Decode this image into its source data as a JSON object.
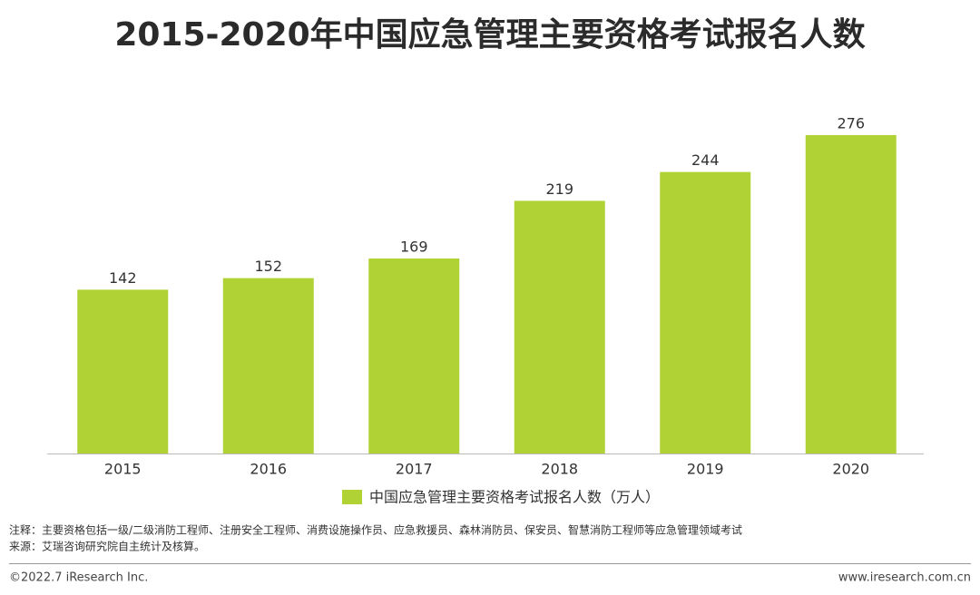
{
  "chart_data": {
    "type": "bar",
    "title": "2015-2020年中国应急管理主要资格考试报名人数",
    "categories": [
      "2015",
      "2016",
      "2017",
      "2018",
      "2019",
      "2020"
    ],
    "series": [
      {
        "name": "中国应急管理主要资格考试报名人数（万人）",
        "color": "#b0d235",
        "values": [
          142,
          152,
          169,
          219,
          244,
          276
        ]
      }
    ],
    "notes": [
      "注释：主要资格包括一级/二级消防工程师、注册安全工程师、消费设施操作员、应急救援员、森林消防员、保安员、智慧消防工程师等应急管理领域考试",
      "来源：艾瑞咨询研究院自主统计及核算。"
    ]
  },
  "footer": {
    "copyright": "©2022.7 iResearch Inc.",
    "website": "www.iresearch.com.cn"
  }
}
